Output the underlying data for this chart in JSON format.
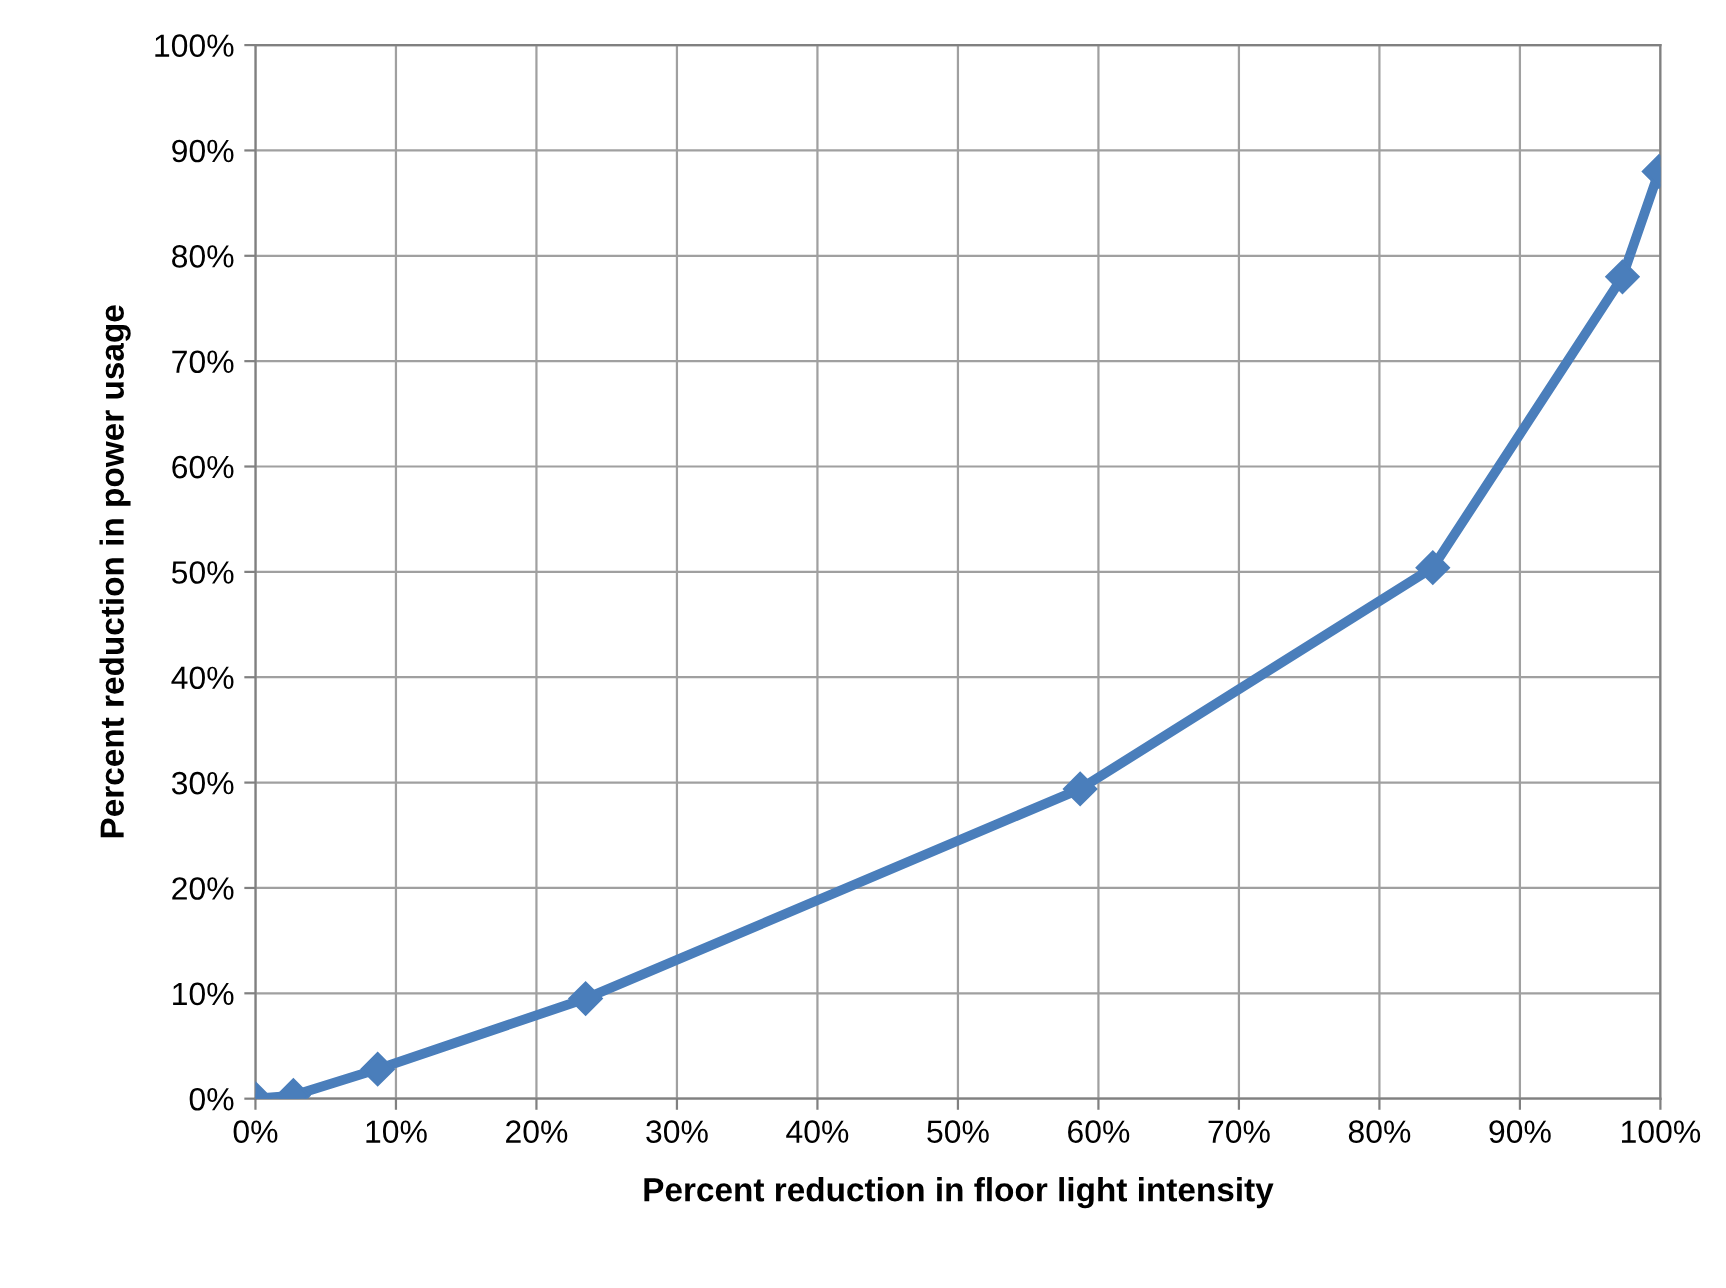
{
  "chart_data": {
    "type": "line",
    "xlabel": "Percent reduction in floor light intensity",
    "ylabel": "Percent reduction in power usage",
    "series": [
      {
        "color": "#4a7ebb",
        "x": [
          0,
          2.7,
          8.7,
          23.5,
          58.7,
          83.8,
          97.3,
          99.9
        ],
        "values": [
          0,
          0.3,
          2.8,
          9.5,
          29.4,
          50.4,
          78,
          88
        ]
      }
    ],
    "xlim": [
      0,
      100
    ],
    "ylim": [
      0,
      100
    ],
    "xticks": [
      {
        "value": 0,
        "label": "0%"
      },
      {
        "value": 10,
        "label": "10%"
      },
      {
        "value": 20,
        "label": "20%"
      },
      {
        "value": 30,
        "label": "30%"
      },
      {
        "value": 40,
        "label": "40%"
      },
      {
        "value": 50,
        "label": "50%"
      },
      {
        "value": 60,
        "label": "60%"
      },
      {
        "value": 70,
        "label": "70%"
      },
      {
        "value": 80,
        "label": "80%"
      },
      {
        "value": 90,
        "label": "90%"
      },
      {
        "value": 100,
        "label": "100%"
      }
    ],
    "yticks": [
      {
        "value": 0,
        "label": "0%"
      },
      {
        "value": 10,
        "label": "10%"
      },
      {
        "value": 20,
        "label": "20%"
      },
      {
        "value": 30,
        "label": "30%"
      },
      {
        "value": 40,
        "label": "40%"
      },
      {
        "value": 50,
        "label": "50%"
      },
      {
        "value": 60,
        "label": "60%"
      },
      {
        "value": 70,
        "label": "70%"
      },
      {
        "value": 80,
        "label": "80%"
      },
      {
        "value": 90,
        "label": "90%"
      },
      {
        "value": 100,
        "label": "100%"
      }
    ],
    "grid": true,
    "marker": "diamond",
    "line_style": "solid"
  }
}
